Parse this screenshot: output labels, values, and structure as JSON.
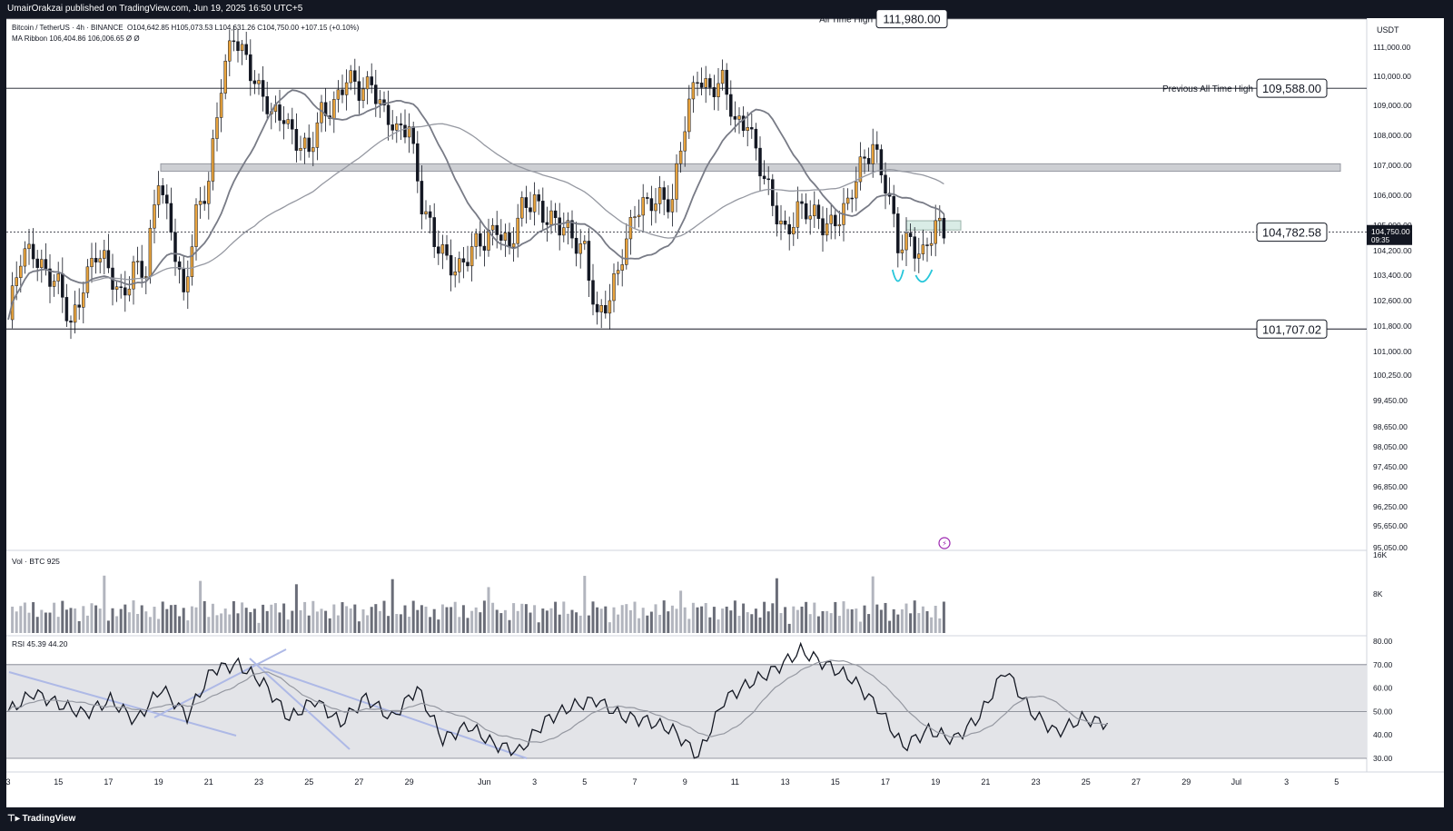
{
  "header": {
    "publisher": "UmairOrakzai published on TradingView.com, Jun 19, 2025 16:50 UTC+5"
  },
  "footer": {
    "brand": "TradingView",
    "logo_icon": "tradingview-logo-icon"
  },
  "legend": {
    "symbol": "Bitcoin / TetherUS · 4h · BINANCE",
    "ohlc": "O104,642.85 H105,073.53 L104,631.26 C104,750.00 +107.15 (+0.10%)",
    "ma_ribbon": "MA Ribbon  106,404.86  106,006.65  Ø  Ø"
  },
  "chart_data": [
    {
      "type": "candlestick",
      "symbol": "Bitcoin / TetherUS",
      "interval": "4h",
      "exchange": "BINANCE",
      "currency": "USDT",
      "price_ticks": [
        95050,
        95650,
        96250,
        96850,
        97450,
        98050,
        98650,
        99450,
        100250,
        101000,
        101800,
        102600,
        103400,
        104200,
        105000,
        106000,
        107000,
        108000,
        109000,
        110000,
        111000
      ],
      "x_ticks": [
        "3",
        "15",
        "17",
        "19",
        "21",
        "23",
        "25",
        "27",
        "29",
        "Jun",
        "3",
        "5",
        "7",
        "9",
        "11",
        "13",
        "15",
        "17",
        "19",
        "21",
        "23",
        "25",
        "27",
        "29",
        "Jul",
        "3",
        "5"
      ],
      "x_tick_dates": [
        "2025-05-13",
        "2025-05-15",
        "2025-05-17",
        "2025-05-19",
        "2025-05-21",
        "2025-05-23",
        "2025-05-25",
        "2025-05-27",
        "2025-05-29",
        "2025-06-01",
        "2025-06-03",
        "2025-06-05",
        "2025-06-07",
        "2025-06-09",
        "2025-06-11",
        "2025-06-13",
        "2025-06-15",
        "2025-06-17",
        "2025-06-19",
        "2025-06-21",
        "2025-06-23",
        "2025-06-25",
        "2025-06-27",
        "2025-06-29",
        "2025-07-01",
        "2025-07-03",
        "2025-07-05"
      ],
      "last_price": "104,750.00",
      "countdown": "09:35",
      "up_color": "#e8a33d",
      "down_color": "#131722",
      "close_path": [
        [
          "2025-05-13",
          102000
        ],
        [
          "2025-05-13T12",
          103800
        ],
        [
          "2025-05-14",
          104300
        ],
        [
          "2025-05-14T12",
          103600
        ],
        [
          "2025-05-15",
          102900
        ],
        [
          "2025-05-15T12",
          101800
        ],
        [
          "2025-05-16",
          103300
        ],
        [
          "2025-05-16T12",
          104000
        ],
        [
          "2025-05-17",
          103500
        ],
        [
          "2025-05-17T12",
          102900
        ],
        [
          "2025-05-18",
          103600
        ],
        [
          "2025-05-18T12",
          103300
        ],
        [
          "2025-05-19",
          106800
        ],
        [
          "2025-05-19T12",
          105000
        ],
        [
          "2025-05-20",
          102400
        ],
        [
          "2025-05-20T12",
          105400
        ],
        [
          "2025-05-21",
          106700
        ],
        [
          "2025-05-21T12",
          109600
        ],
        [
          "2025-05-22",
          111300
        ],
        [
          "2025-05-22T12",
          110800
        ],
        [
          "2025-05-23",
          109500
        ],
        [
          "2025-05-23T12",
          108500
        ],
        [
          "2025-05-24",
          108800
        ],
        [
          "2025-05-24T12",
          107900
        ],
        [
          "2025-05-25",
          107200
        ],
        [
          "2025-05-25T12",
          108800
        ],
        [
          "2025-05-26",
          109200
        ],
        [
          "2025-05-26T12",
          109800
        ],
        [
          "2025-05-27",
          109400
        ],
        [
          "2025-05-27T12",
          110000
        ],
        [
          "2025-05-28",
          108700
        ],
        [
          "2025-05-28T12",
          107900
        ],
        [
          "2025-05-29",
          108500
        ],
        [
          "2025-05-29T12",
          105800
        ],
        [
          "2025-05-30",
          104300
        ],
        [
          "2025-05-30T12",
          103900
        ],
        [
          "2025-05-31",
          103800
        ],
        [
          "2025-06-01",
          104400
        ],
        [
          "2025-06-01T12",
          105200
        ],
        [
          "2025-06-02",
          104200
        ],
        [
          "2025-06-02T12",
          105400
        ],
        [
          "2025-06-03",
          106000
        ],
        [
          "2025-06-03T12",
          105300
        ],
        [
          "2025-06-04",
          104800
        ],
        [
          "2025-06-04T12",
          104700
        ],
        [
          "2025-06-05",
          104400
        ],
        [
          "2025-06-05T12",
          101800
        ],
        [
          "2025-06-06",
          102600
        ],
        [
          "2025-06-06T12",
          104300
        ],
        [
          "2025-06-07",
          105400
        ],
        [
          "2025-06-07T12",
          105500
        ],
        [
          "2025-06-08",
          106100
        ],
        [
          "2025-06-08T12",
          105900
        ],
        [
          "2025-06-09",
          108200
        ],
        [
          "2025-06-09T12",
          110100
        ],
        [
          "2025-06-10",
          109700
        ],
        [
          "2025-06-10T12",
          109700
        ],
        [
          "2025-06-11",
          108300
        ],
        [
          "2025-06-11T12",
          108700
        ],
        [
          "2025-06-12",
          106900
        ],
        [
          "2025-06-12T12",
          105500
        ],
        [
          "2025-06-13",
          104900
        ],
        [
          "2025-06-13T12",
          105600
        ],
        [
          "2025-06-14",
          105200
        ],
        [
          "2025-06-14T12",
          105100
        ],
        [
          "2025-06-15",
          105300
        ],
        [
          "2025-06-15T12",
          105500
        ],
        [
          "2025-06-16",
          106900
        ],
        [
          "2025-06-16T12",
          107900
        ],
        [
          "2025-06-17",
          106300
        ],
        [
          "2025-06-17T12",
          104200
        ],
        [
          "2025-06-18",
          104700
        ],
        [
          "2025-06-18T12",
          104100
        ],
        [
          "2025-06-19",
          104800
        ],
        [
          "2025-06-19T08",
          104750
        ]
      ],
      "horizontal_levels": [
        {
          "label": "All Time High",
          "value": 111980,
          "value_text": "111,980.00"
        },
        {
          "label": "Previous All Time High",
          "value": 109588,
          "value_text": "109,588.00"
        },
        {
          "label": "",
          "value": 104782.58,
          "value_text": "104,782.58"
        },
        {
          "label": "",
          "value": 101707.02,
          "value_text": "101,707.02"
        }
      ],
      "resistance_zone": [
        106800,
        107050
      ],
      "marked_zone": [
        104850,
        105150
      ],
      "ma_ribbon": [
        {
          "values_text": "106,404.86",
          "color": "#787b86"
        },
        {
          "values_text": "106,006.65",
          "color": "#9598a1"
        }
      ],
      "annotation": "double bottom (two U marks)"
    },
    {
      "type": "bar",
      "title": "Vol · BTC",
      "value_text": "925",
      "y_ticks": [
        "8K",
        "16K"
      ]
    },
    {
      "type": "line",
      "title": "RSI",
      "value_text": "45.39",
      "ma_text": "44.20",
      "y_ticks": [
        30,
        40,
        50,
        60,
        70,
        80
      ],
      "band": [
        30,
        70
      ],
      "midline": 50,
      "path": [
        [
          0,
          50
        ],
        [
          3,
          58
        ],
        [
          6,
          53
        ],
        [
          9,
          49
        ],
        [
          12,
          55
        ],
        [
          15,
          46
        ],
        [
          18,
          60
        ],
        [
          21,
          48
        ],
        [
          24,
          68
        ],
        [
          27,
          70
        ],
        [
          30,
          62
        ],
        [
          33,
          47
        ],
        [
          36,
          55
        ],
        [
          39,
          45
        ],
        [
          42,
          56
        ],
        [
          45,
          47
        ],
        [
          48,
          60
        ],
        [
          51,
          38
        ],
        [
          54,
          44
        ],
        [
          57,
          36
        ],
        [
          60,
          33
        ],
        [
          63,
          46
        ],
        [
          66,
          52
        ],
        [
          69,
          55
        ],
        [
          72,
          48
        ],
        [
          75,
          46
        ],
        [
          78,
          42
        ],
        [
          81,
          31
        ],
        [
          84,
          55
        ],
        [
          87,
          62
        ],
        [
          90,
          68
        ],
        [
          93,
          76
        ],
        [
          96,
          70
        ],
        [
          99,
          64
        ],
        [
          102,
          52
        ],
        [
          105,
          35
        ],
        [
          108,
          42
        ],
        [
          111,
          38
        ],
        [
          114,
          48
        ],
        [
          117,
          68
        ],
        [
          120,
          50
        ],
        [
          123,
          41
        ],
        [
          126,
          47
        ],
        [
          129,
          45
        ]
      ]
    }
  ]
}
